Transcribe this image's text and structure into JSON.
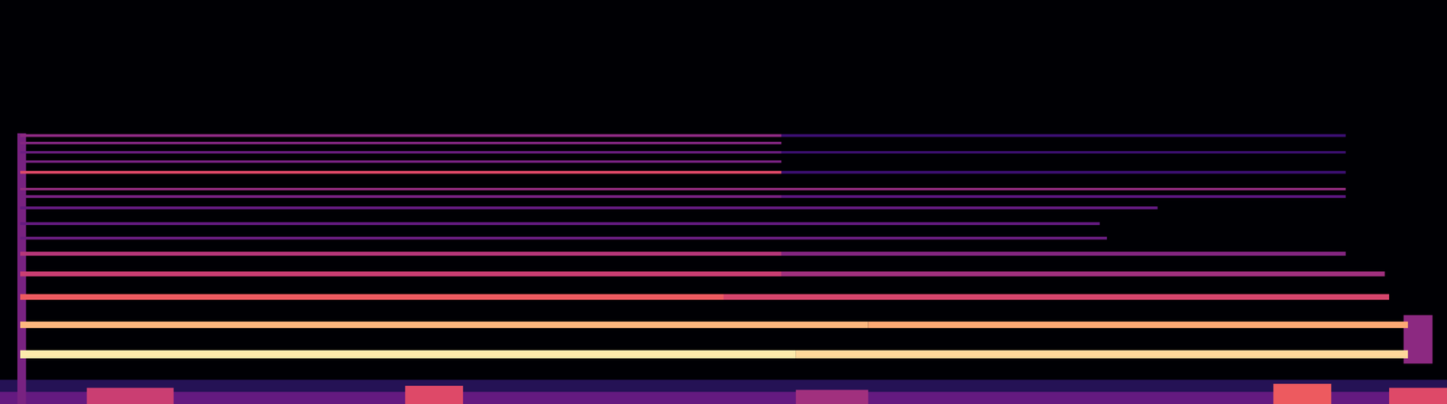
{
  "chart_data": {
    "type": "spectrogram",
    "xlim": [
      0,
      100
    ],
    "ylim": [
      0,
      100
    ],
    "tick_labels": false,
    "grid": false,
    "color": "magma",
    "color_range": [
      0,
      100
    ],
    "cells": [
      {
        "t0": 0,
        "t1": 100,
        "f0": 0,
        "f1": 6,
        "level": 15
      },
      {
        "t0": 0,
        "t1": 100,
        "f0": 0,
        "f1": 3,
        "level": 30
      },
      {
        "t0": 6,
        "t1": 12,
        "f0": 0,
        "f1": 4,
        "level": 55
      },
      {
        "t0": 28,
        "t1": 32,
        "f0": 0,
        "f1": 4.5,
        "level": 60
      },
      {
        "t0": 55,
        "t1": 60,
        "f0": 0,
        "f1": 3.5,
        "level": 45
      },
      {
        "t0": 88,
        "t1": 92,
        "f0": 0,
        "f1": 5,
        "level": 65
      },
      {
        "t0": 96,
        "t1": 100,
        "f0": 0,
        "f1": 4,
        "level": 60
      },
      {
        "t0": 1.2,
        "t1": 1.8,
        "f0": 0,
        "f1": 67,
        "level": 35
      },
      {
        "t0": 97,
        "t1": 99,
        "f0": 10,
        "f1": 22,
        "level": 40
      },
      {
        "t0": 1.4,
        "t1": 55,
        "f0": 11.3,
        "f1": 13.3,
        "level": 96
      },
      {
        "t0": 55,
        "t1": 97.3,
        "f0": 11.3,
        "f1": 13.3,
        "level": 92
      },
      {
        "t0": 1.4,
        "t1": 60,
        "f0": 18.8,
        "f1": 20.4,
        "level": 85
      },
      {
        "t0": 60,
        "t1": 97.3,
        "f0": 18.8,
        "f1": 20.4,
        "level": 82
      },
      {
        "t0": 1.4,
        "t1": 50,
        "f0": 25.8,
        "f1": 27.2,
        "level": 65
      },
      {
        "t0": 50,
        "t1": 96,
        "f0": 25.8,
        "f1": 27.2,
        "level": 58
      },
      {
        "t0": 1.4,
        "t1": 54,
        "f0": 31.6,
        "f1": 32.8,
        "level": 55
      },
      {
        "t0": 54,
        "t1": 95.7,
        "f0": 31.6,
        "f1": 32.8,
        "level": 45
      },
      {
        "t0": 1.4,
        "t1": 54,
        "f0": 36.7,
        "f1": 37.7,
        "level": 50
      },
      {
        "t0": 54,
        "t1": 93,
        "f0": 36.7,
        "f1": 37.7,
        "level": 38
      },
      {
        "t0": 1.4,
        "t1": 76.5,
        "f0": 40.7,
        "f1": 41.4,
        "level": 32
      },
      {
        "t0": 1.4,
        "t1": 76,
        "f0": 44.3,
        "f1": 45,
        "level": 30
      },
      {
        "t0": 1.4,
        "t1": 80,
        "f0": 48.2,
        "f1": 48.9,
        "level": 30
      },
      {
        "t0": 1.4,
        "t1": 54,
        "f0": 51,
        "f1": 51.7,
        "level": 35
      },
      {
        "t0": 54,
        "t1": 93,
        "f0": 51,
        "f1": 51.7,
        "level": 28
      },
      {
        "t0": 1.4,
        "t1": 93,
        "f0": 52.9,
        "f1": 53.5,
        "level": 42
      },
      {
        "t0": 1.4,
        "t1": 54,
        "f0": 57,
        "f1": 57.7,
        "level": 60
      },
      {
        "t0": 54,
        "t1": 93,
        "f0": 57,
        "f1": 57.7,
        "level": 20
      },
      {
        "t0": 1.4,
        "t1": 54,
        "f0": 59.7,
        "f1": 60.3,
        "level": 35
      },
      {
        "t0": 1.4,
        "t1": 54,
        "f0": 62,
        "f1": 62.6,
        "level": 32
      },
      {
        "t0": 54,
        "t1": 93,
        "f0": 62,
        "f1": 62.6,
        "level": 20
      },
      {
        "t0": 1.4,
        "t1": 54,
        "f0": 64.3,
        "f1": 64.9,
        "level": 38
      },
      {
        "t0": 1.4,
        "t1": 54,
        "f0": 66.1,
        "f1": 66.8,
        "level": 40
      },
      {
        "t0": 54,
        "t1": 93,
        "f0": 66.1,
        "f1": 66.8,
        "level": 20
      }
    ]
  }
}
